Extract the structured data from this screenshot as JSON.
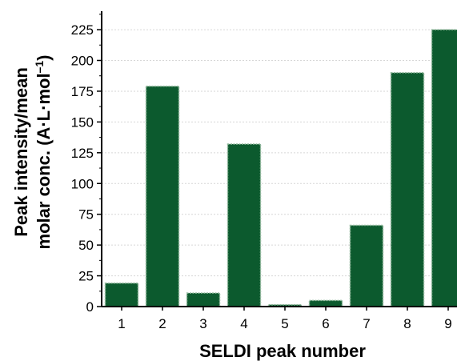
{
  "chart_data": {
    "type": "bar",
    "categories": [
      "1",
      "2",
      "3",
      "4",
      "5",
      "6",
      "7",
      "8",
      "9"
    ],
    "values": [
      19,
      179,
      11,
      132,
      1.5,
      5,
      66,
      190,
      225
    ],
    "xlabel": "SELDI peak number",
    "ylabel_line1": "Peak intensity/mean",
    "ylabel_line2_main": "molar conc. (A·L·mol",
    "ylabel_line2_sup": "–1",
    "ylabel_line2_end": ")",
    "yticks": [
      "0",
      "25",
      "50",
      "75",
      "100",
      "125",
      "150",
      "175",
      "200",
      "225"
    ],
    "ylim": [
      0,
      240
    ],
    "grid": true,
    "bar_color": "#0c5a2e",
    "bar_edge_color": "#8fb89a"
  }
}
